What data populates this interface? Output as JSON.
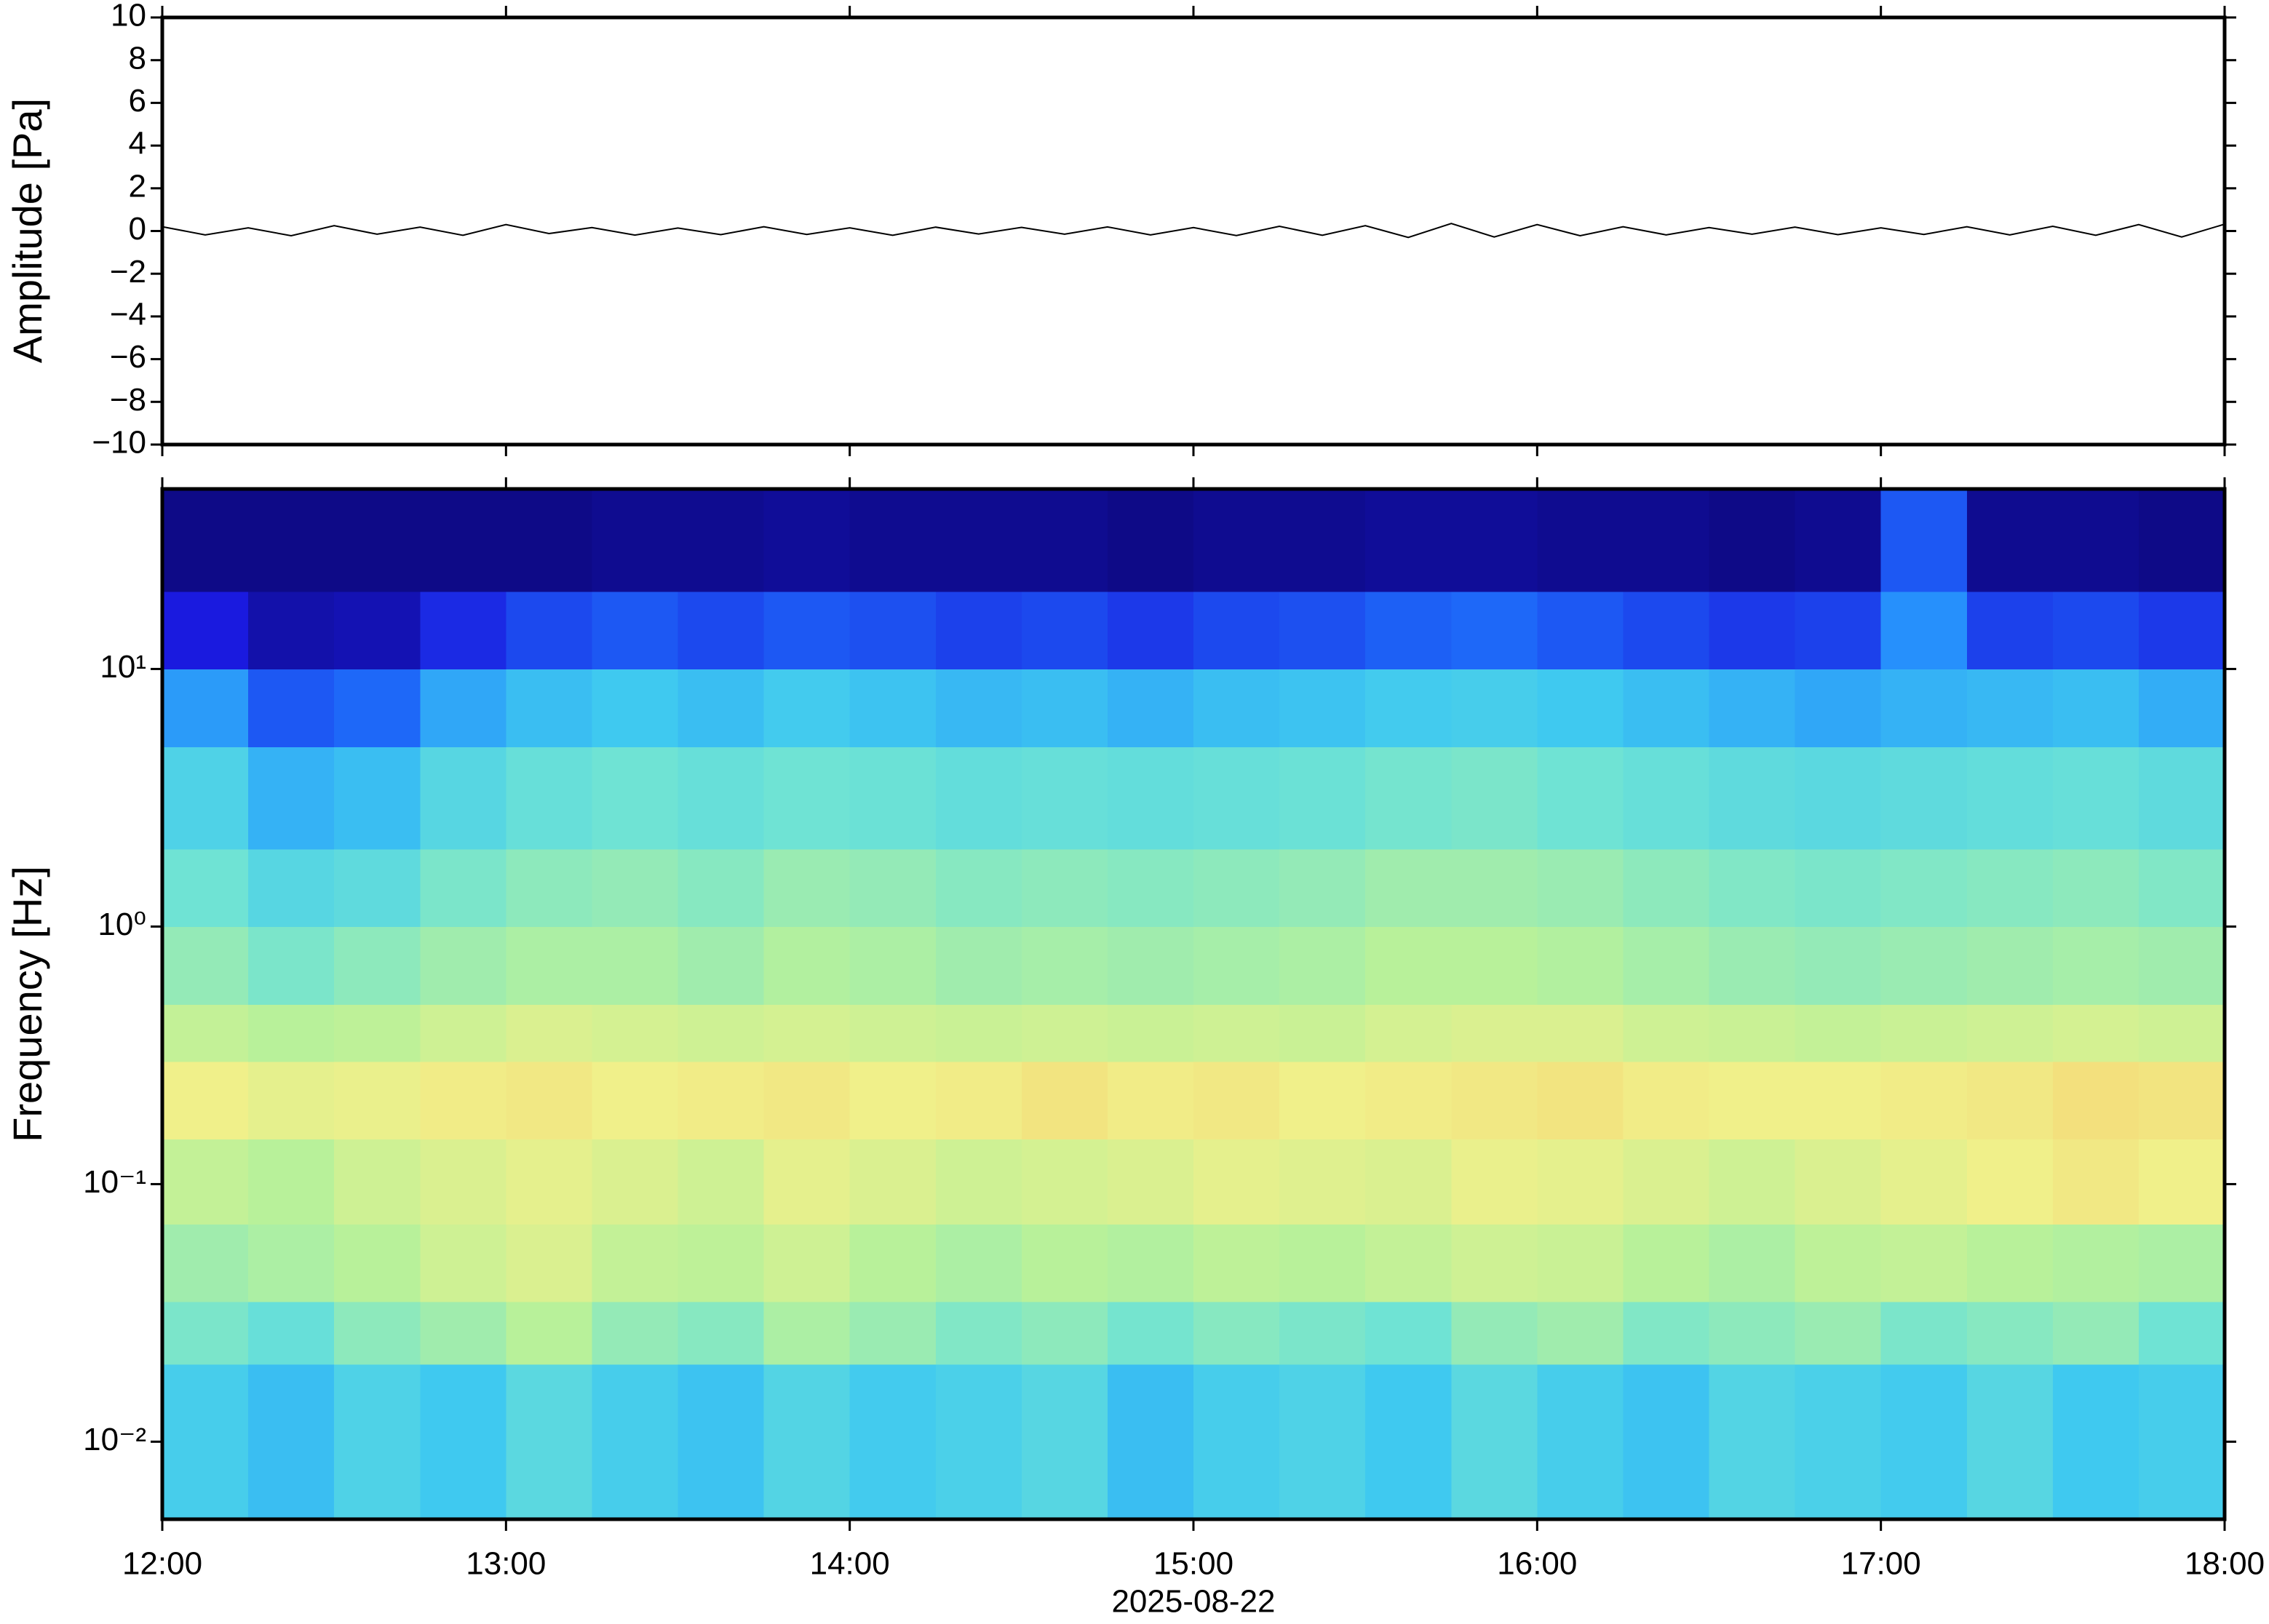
{
  "chart_data": [
    {
      "type": "line",
      "ylabel": "Amplitude [Pa]",
      "color": "#000000",
      "x": [
        12,
        12.125,
        12.25,
        12.375,
        12.5,
        12.625,
        12.75,
        12.875,
        13,
        13.125,
        13.25,
        13.375,
        13.5,
        13.625,
        13.75,
        13.875,
        14,
        14.125,
        14.25,
        14.375,
        14.5,
        14.625,
        14.75,
        14.875,
        15,
        15.125,
        15.25,
        15.375,
        15.5,
        15.625,
        15.75,
        15.875,
        16,
        16.125,
        16.25,
        16.375,
        16.5,
        16.625,
        16.75,
        16.875,
        17,
        17.125,
        17.25,
        17.375,
        17.5,
        17.625,
        17.75,
        17.875,
        18
      ],
      "values": [
        0.2,
        -0.18,
        0.15,
        -0.22,
        0.25,
        -0.15,
        0.18,
        -0.2,
        0.3,
        -0.12,
        0.16,
        -0.19,
        0.14,
        -0.17,
        0.2,
        -0.16,
        0.15,
        -0.2,
        0.18,
        -0.14,
        0.17,
        -0.15,
        0.19,
        -0.18,
        0.16,
        -0.21,
        0.22,
        -0.2,
        0.25,
        -0.3,
        0.35,
        -0.28,
        0.3,
        -0.22,
        0.2,
        -0.18,
        0.16,
        -0.15,
        0.18,
        -0.17,
        0.15,
        -0.16,
        0.2,
        -0.18,
        0.22,
        -0.2,
        0.3,
        -0.28,
        0.32
      ],
      "xlim": [
        12,
        18
      ],
      "ylim": [
        -10,
        10
      ],
      "yticks": [
        {
          "value": -10,
          "label": "−10"
        },
        {
          "value": -8,
          "label": "−8"
        },
        {
          "value": -6,
          "label": "−6"
        },
        {
          "value": -4,
          "label": "−4"
        },
        {
          "value": -2,
          "label": "−2"
        },
        0,
        2,
        4,
        6,
        8,
        10
      ]
    },
    {
      "type": "heatmap",
      "ylabel": "Frequency [Hz]",
      "xlabel": "2025-08-22",
      "ylog": true,
      "xlim": [
        12,
        18
      ],
      "ylim": [
        0.005,
        50
      ],
      "xticks": [
        {
          "value": 12,
          "label": "12:00"
        },
        {
          "value": 13,
          "label": "13:00"
        },
        {
          "value": 14,
          "label": "14:00"
        },
        {
          "value": 15,
          "label": "15:00"
        },
        {
          "value": 16,
          "label": "16:00"
        },
        {
          "value": 17,
          "label": "17:00"
        },
        {
          "value": 18,
          "label": "18:00"
        }
      ],
      "yticks": [
        {
          "value": 0.01,
          "label": "10⁻²"
        },
        {
          "value": 0.1,
          "label": "10⁻¹"
        },
        {
          "value": 1,
          "label": "10⁰"
        },
        {
          "value": 10,
          "label": "10¹"
        }
      ],
      "colorscale": [
        {
          "value": 0,
          "color": "#0b0775"
        },
        {
          "value": 0.12,
          "color": "#1a1adf"
        },
        {
          "value": 0.25,
          "color": "#1f7fff"
        },
        {
          "value": 0.38,
          "color": "#3fc9f0"
        },
        {
          "value": 0.5,
          "color": "#6fe3d4"
        },
        {
          "value": 0.62,
          "color": "#b8f19a"
        },
        {
          "value": 0.72,
          "color": "#f0f08a"
        },
        {
          "value": 0.82,
          "color": "#f7c86a"
        },
        {
          "value": 0.92,
          "color": "#f08f4a"
        },
        {
          "value": 1,
          "color": "#d04020"
        }
      ],
      "x_bins": [
        12,
        12.25,
        12.5,
        12.75,
        13,
        13.25,
        13.5,
        13.75,
        14,
        14.25,
        14.5,
        14.75,
        15,
        15.25,
        15.5,
        15.75,
        16,
        16.25,
        16.5,
        16.75,
        17,
        17.25,
        17.5,
        17.75,
        18
      ],
      "y_bins": [
        0.005,
        0.02,
        0.035,
        0.07,
        0.15,
        0.3,
        0.5,
        1,
        2,
        5,
        10,
        20,
        50
      ],
      "values": [
        [
          0.4,
          0.36,
          0.42,
          0.38,
          0.45,
          0.4,
          0.37,
          0.43,
          0.39,
          0.41,
          0.44,
          0.36,
          0.4,
          0.42,
          0.38,
          0.45,
          0.4,
          0.37,
          0.43,
          0.41,
          0.39,
          0.44,
          0.38,
          0.4
        ],
        [
          0.52,
          0.48,
          0.55,
          0.58,
          0.62,
          0.56,
          0.54,
          0.6,
          0.57,
          0.53,
          0.55,
          0.51,
          0.54,
          0.52,
          0.5,
          0.56,
          0.58,
          0.53,
          0.55,
          0.57,
          0.52,
          0.54,
          0.56,
          0.5
        ],
        [
          0.58,
          0.6,
          0.62,
          0.66,
          0.68,
          0.64,
          0.63,
          0.66,
          0.62,
          0.6,
          0.62,
          0.61,
          0.63,
          0.62,
          0.64,
          0.66,
          0.65,
          0.62,
          0.6,
          0.63,
          0.64,
          0.62,
          0.61,
          0.6
        ],
        [
          0.64,
          0.62,
          0.66,
          0.68,
          0.7,
          0.68,
          0.66,
          0.7,
          0.68,
          0.66,
          0.67,
          0.68,
          0.7,
          0.69,
          0.68,
          0.71,
          0.7,
          0.68,
          0.66,
          0.68,
          0.7,
          0.72,
          0.74,
          0.72
        ],
        [
          0.72,
          0.7,
          0.71,
          0.73,
          0.74,
          0.72,
          0.73,
          0.74,
          0.72,
          0.73,
          0.75,
          0.73,
          0.74,
          0.72,
          0.73,
          0.74,
          0.75,
          0.73,
          0.72,
          0.72,
          0.73,
          0.74,
          0.76,
          0.75
        ],
        [
          0.64,
          0.62,
          0.63,
          0.66,
          0.68,
          0.67,
          0.66,
          0.67,
          0.66,
          0.65,
          0.66,
          0.65,
          0.66,
          0.65,
          0.67,
          0.68,
          0.68,
          0.66,
          0.65,
          0.64,
          0.65,
          0.66,
          0.67,
          0.66
        ],
        [
          0.56,
          0.52,
          0.55,
          0.58,
          0.6,
          0.6,
          0.58,
          0.61,
          0.6,
          0.58,
          0.59,
          0.58,
          0.59,
          0.6,
          0.62,
          0.62,
          0.61,
          0.59,
          0.57,
          0.56,
          0.57,
          0.58,
          0.59,
          0.58
        ],
        [
          0.5,
          0.44,
          0.46,
          0.52,
          0.55,
          0.56,
          0.54,
          0.57,
          0.56,
          0.54,
          0.55,
          0.54,
          0.55,
          0.56,
          0.58,
          0.58,
          0.57,
          0.55,
          0.53,
          0.52,
          0.53,
          0.54,
          0.55,
          0.53
        ],
        [
          0.42,
          0.34,
          0.36,
          0.44,
          0.48,
          0.5,
          0.48,
          0.5,
          0.49,
          0.47,
          0.48,
          0.47,
          0.48,
          0.49,
          0.51,
          0.52,
          0.5,
          0.48,
          0.46,
          0.45,
          0.46,
          0.47,
          0.48,
          0.46
        ],
        [
          0.3,
          0.2,
          0.22,
          0.32,
          0.36,
          0.38,
          0.36,
          0.39,
          0.37,
          0.35,
          0.36,
          0.34,
          0.36,
          0.37,
          0.39,
          0.4,
          0.38,
          0.36,
          0.34,
          0.32,
          0.34,
          0.35,
          0.36,
          0.33
        ],
        [
          0.12,
          0.06,
          0.07,
          0.14,
          0.18,
          0.2,
          0.18,
          0.2,
          0.19,
          0.17,
          0.18,
          0.16,
          0.18,
          0.19,
          0.21,
          0.22,
          0.2,
          0.18,
          0.16,
          0.17,
          0.28,
          0.17,
          0.18,
          0.16
        ],
        [
          0.02,
          0.02,
          0.02,
          0.02,
          0.02,
          0.03,
          0.03,
          0.04,
          0.03,
          0.03,
          0.03,
          0.02,
          0.03,
          0.03,
          0.04,
          0.04,
          0.03,
          0.03,
          0.02,
          0.03,
          0.2,
          0.03,
          0.03,
          0.02
        ]
      ]
    }
  ]
}
